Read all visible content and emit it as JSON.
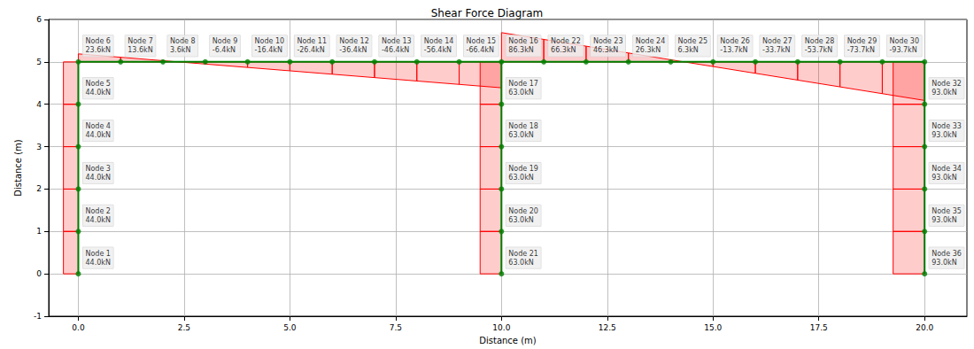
{
  "chart_data": {
    "type": "shear_force_diagram",
    "title": "Shear Force Diagram",
    "x_label": "Distance (m)",
    "y_label": "Distance (m)",
    "xlim": [
      -0.7,
      21.0
    ],
    "ylim": [
      -1,
      6
    ],
    "xticks": [
      {
        "value": 0,
        "label": "0.0"
      },
      2.5,
      {
        "value": 5,
        "label": "5.0"
      },
      7.5,
      {
        "value": 10,
        "label": "10.0"
      },
      12.5,
      {
        "value": 15,
        "label": "15.0"
      },
      17.5,
      {
        "value": 20,
        "label": "20.0"
      }
    ],
    "yticks": [
      -1,
      0,
      1,
      2,
      3,
      4,
      5,
      6
    ],
    "grid": true,
    "color": "#ff0000",
    "frame_color": "#008000",
    "nodes": [
      {
        "id": 1,
        "label": "Node 1",
        "x": 0,
        "y": 0,
        "shear": 44.0,
        "value_label": "44.0kN"
      },
      {
        "id": 2,
        "label": "Node 2",
        "x": 0,
        "y": 1,
        "shear": 44.0,
        "value_label": "44.0kN"
      },
      {
        "id": 3,
        "label": "Node 3",
        "x": 0,
        "y": 2,
        "shear": 44.0,
        "value_label": "44.0kN"
      },
      {
        "id": 4,
        "label": "Node 4",
        "x": 0,
        "y": 3,
        "shear": 44.0,
        "value_label": "44.0kN"
      },
      {
        "id": 5,
        "label": "Node 5",
        "x": 0,
        "y": 4,
        "shear": 44.0,
        "value_label": "44.0kN"
      },
      {
        "id": 6,
        "label": "Node 6",
        "x": 0,
        "y": 5,
        "shear": 23.6,
        "value_label": "23.6kN"
      },
      {
        "id": 7,
        "label": "Node 7",
        "x": 1,
        "y": 5,
        "shear": 13.6,
        "value_label": "13.6kN"
      },
      {
        "id": 8,
        "label": "Node 8",
        "x": 2,
        "y": 5,
        "shear": 3.6,
        "value_label": "3.6kN"
      },
      {
        "id": 9,
        "label": "Node 9",
        "x": 3,
        "y": 5,
        "shear": -6.4,
        "value_label": "-6.4kN"
      },
      {
        "id": 10,
        "label": "Node 10",
        "x": 4,
        "y": 5,
        "shear": -16.4,
        "value_label": "-16.4kN"
      },
      {
        "id": 11,
        "label": "Node 11",
        "x": 5,
        "y": 5,
        "shear": -26.4,
        "value_label": "-26.4kN"
      },
      {
        "id": 12,
        "label": "Node 12",
        "x": 6,
        "y": 5,
        "shear": -36.4,
        "value_label": "-36.4kN"
      },
      {
        "id": 13,
        "label": "Node 13",
        "x": 7,
        "y": 5,
        "shear": -46.4,
        "value_label": "-46.4kN"
      },
      {
        "id": 14,
        "label": "Node 14",
        "x": 8,
        "y": 5,
        "shear": -56.4,
        "value_label": "-56.4kN"
      },
      {
        "id": 15,
        "label": "Node 15",
        "x": 9,
        "y": 5,
        "shear": -66.4,
        "value_label": "-66.4kN"
      },
      {
        "id": 16,
        "label": "Node 16",
        "x": 10,
        "y": 5,
        "shear": 86.3,
        "value_label": "86.3kN"
      },
      {
        "id": 17,
        "label": "Node 17",
        "x": 10,
        "y": 4,
        "shear": 63.0,
        "value_label": "63.0kN"
      },
      {
        "id": 18,
        "label": "Node 18",
        "x": 10,
        "y": 3,
        "shear": 63.0,
        "value_label": "63.0kN"
      },
      {
        "id": 19,
        "label": "Node 19",
        "x": 10,
        "y": 2,
        "shear": 63.0,
        "value_label": "63.0kN"
      },
      {
        "id": 20,
        "label": "Node 20",
        "x": 10,
        "y": 1,
        "shear": 63.0,
        "value_label": "63.0kN"
      },
      {
        "id": 21,
        "label": "Node 21",
        "x": 10,
        "y": 0,
        "shear": 63.0,
        "value_label": "63.0kN"
      },
      {
        "id": 22,
        "label": "Node 22",
        "x": 11,
        "y": 5,
        "shear": 66.3,
        "value_label": "66.3kN"
      },
      {
        "id": 23,
        "label": "Node 23",
        "x": 12,
        "y": 5,
        "shear": 46.3,
        "value_label": "46.3kN"
      },
      {
        "id": 24,
        "label": "Node 24",
        "x": 13,
        "y": 5,
        "shear": 26.3,
        "value_label": "26.3kN"
      },
      {
        "id": 25,
        "label": "Node 25",
        "x": 14,
        "y": 5,
        "shear": 6.3,
        "value_label": "6.3kN"
      },
      {
        "id": 26,
        "label": "Node 26",
        "x": 15,
        "y": 5,
        "shear": -13.7,
        "value_label": "-13.7kN"
      },
      {
        "id": 27,
        "label": "Node 27",
        "x": 16,
        "y": 5,
        "shear": -33.7,
        "value_label": "-33.7kN"
      },
      {
        "id": 28,
        "label": "Node 28",
        "x": 17,
        "y": 5,
        "shear": -53.7,
        "value_label": "-53.7kN"
      },
      {
        "id": 29,
        "label": "Node 29",
        "x": 18,
        "y": 5,
        "shear": -73.7,
        "value_label": "-73.7kN"
      },
      {
        "id": 30,
        "label": "Node 30",
        "x": 19,
        "y": 5,
        "shear": -93.7,
        "value_label": "-93.7kN"
      },
      {
        "id": 31,
        "x": 20,
        "y": 5
      },
      {
        "id": 32,
        "label": "Node 32",
        "x": 20,
        "y": 4,
        "shear": 93.0,
        "value_label": "93.0kN"
      },
      {
        "id": 33,
        "label": "Node 33",
        "x": 20,
        "y": 3,
        "shear": 93.0,
        "value_label": "93.0kN"
      },
      {
        "id": 34,
        "label": "Node 34",
        "x": 20,
        "y": 2,
        "shear": 93.0,
        "value_label": "93.0kN"
      },
      {
        "id": 35,
        "label": "Node 35",
        "x": 20,
        "y": 1,
        "shear": 93.0,
        "value_label": "93.0kN"
      },
      {
        "id": 36,
        "label": "Node 36",
        "x": 20,
        "y": 0,
        "shear": 93.0,
        "value_label": "93.0kN"
      }
    ],
    "elements": [
      {
        "from": 1,
        "to": 2,
        "shear_end": 44.0
      },
      {
        "from": 2,
        "to": 3,
        "shear_end": 44.0
      },
      {
        "from": 3,
        "to": 4,
        "shear_end": 44.0
      },
      {
        "from": 4,
        "to": 5,
        "shear_end": 44.0
      },
      {
        "from": 5,
        "to": 6,
        "shear_end": 44.0
      },
      {
        "from": 6,
        "to": 7,
        "shear_end": 13.6
      },
      {
        "from": 7,
        "to": 8,
        "shear_end": 3.6
      },
      {
        "from": 8,
        "to": 9,
        "shear_end": -6.4
      },
      {
        "from": 9,
        "to": 10,
        "shear_end": -16.4
      },
      {
        "from": 10,
        "to": 11,
        "shear_end": -26.4
      },
      {
        "from": 11,
        "to": 12,
        "shear_end": -36.4
      },
      {
        "from": 12,
        "to": 13,
        "shear_end": -46.4
      },
      {
        "from": 13,
        "to": 14,
        "shear_end": -56.4
      },
      {
        "from": 14,
        "to": 15,
        "shear_end": -66.4
      },
      {
        "from": 15,
        "to": 16,
        "shear_end": -76.4
      },
      {
        "from": 21,
        "to": 20,
        "shear_end": 63.0
      },
      {
        "from": 20,
        "to": 19,
        "shear_end": 63.0
      },
      {
        "from": 19,
        "to": 18,
        "shear_end": 63.0
      },
      {
        "from": 18,
        "to": 17,
        "shear_end": 63.0
      },
      {
        "from": 17,
        "to": 16,
        "shear_end": 63.0
      },
      {
        "from": 16,
        "to": 22,
        "shear_end": 66.3
      },
      {
        "from": 22,
        "to": 23,
        "shear_end": 46.3
      },
      {
        "from": 23,
        "to": 24,
        "shear_end": 26.3
      },
      {
        "from": 24,
        "to": 25,
        "shear_end": 6.3
      },
      {
        "from": 25,
        "to": 26,
        "shear_end": -13.7
      },
      {
        "from": 26,
        "to": 27,
        "shear_end": -33.7
      },
      {
        "from": 27,
        "to": 28,
        "shear_end": -53.7
      },
      {
        "from": 28,
        "to": 29,
        "shear_end": -73.7
      },
      {
        "from": 29,
        "to": 30,
        "shear_end": -93.7
      },
      {
        "from": 30,
        "to": 31,
        "shear_end": -113.7
      },
      {
        "from": 36,
        "to": 35,
        "shear_end": 93.0
      },
      {
        "from": 35,
        "to": 34,
        "shear_end": 93.0
      },
      {
        "from": 34,
        "to": 33,
        "shear_end": 93.0
      },
      {
        "from": 33,
        "to": 32,
        "shear_end": 93.0
      },
      {
        "from": 32,
        "to": 31,
        "shear_end": 93.0
      }
    ]
  }
}
